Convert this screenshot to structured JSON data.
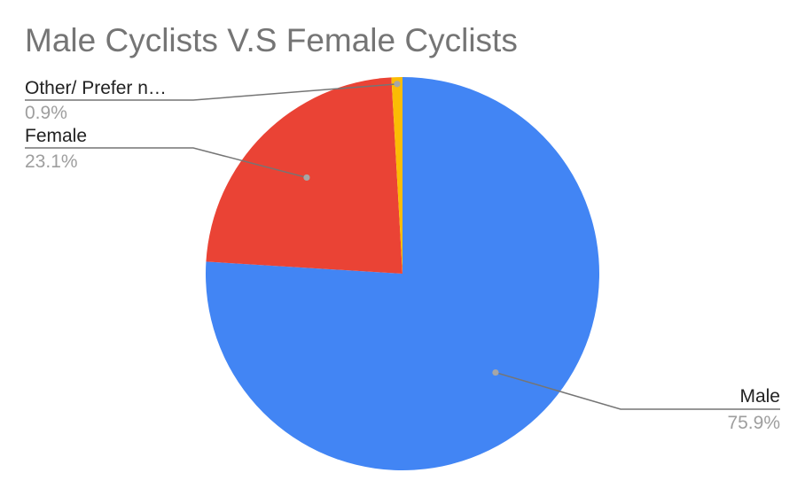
{
  "chart_data": {
    "type": "pie",
    "title": "Male Cyclists V.S Female Cyclists",
    "start_angle_deg": 0,
    "direction": "clockwise",
    "slices": [
      {
        "label": "Male",
        "value": 75.9,
        "value_label": "75.9%",
        "color": "#4285f4",
        "label_side": "right"
      },
      {
        "label": "Female",
        "value": 23.1,
        "value_label": "23.1%",
        "color": "#ea4335",
        "label_side": "left"
      },
      {
        "label": "Other/ Prefer n…",
        "value": 0.9,
        "value_label": "0.9%",
        "color": "#fbbc04",
        "label_side": "left"
      }
    ]
  }
}
